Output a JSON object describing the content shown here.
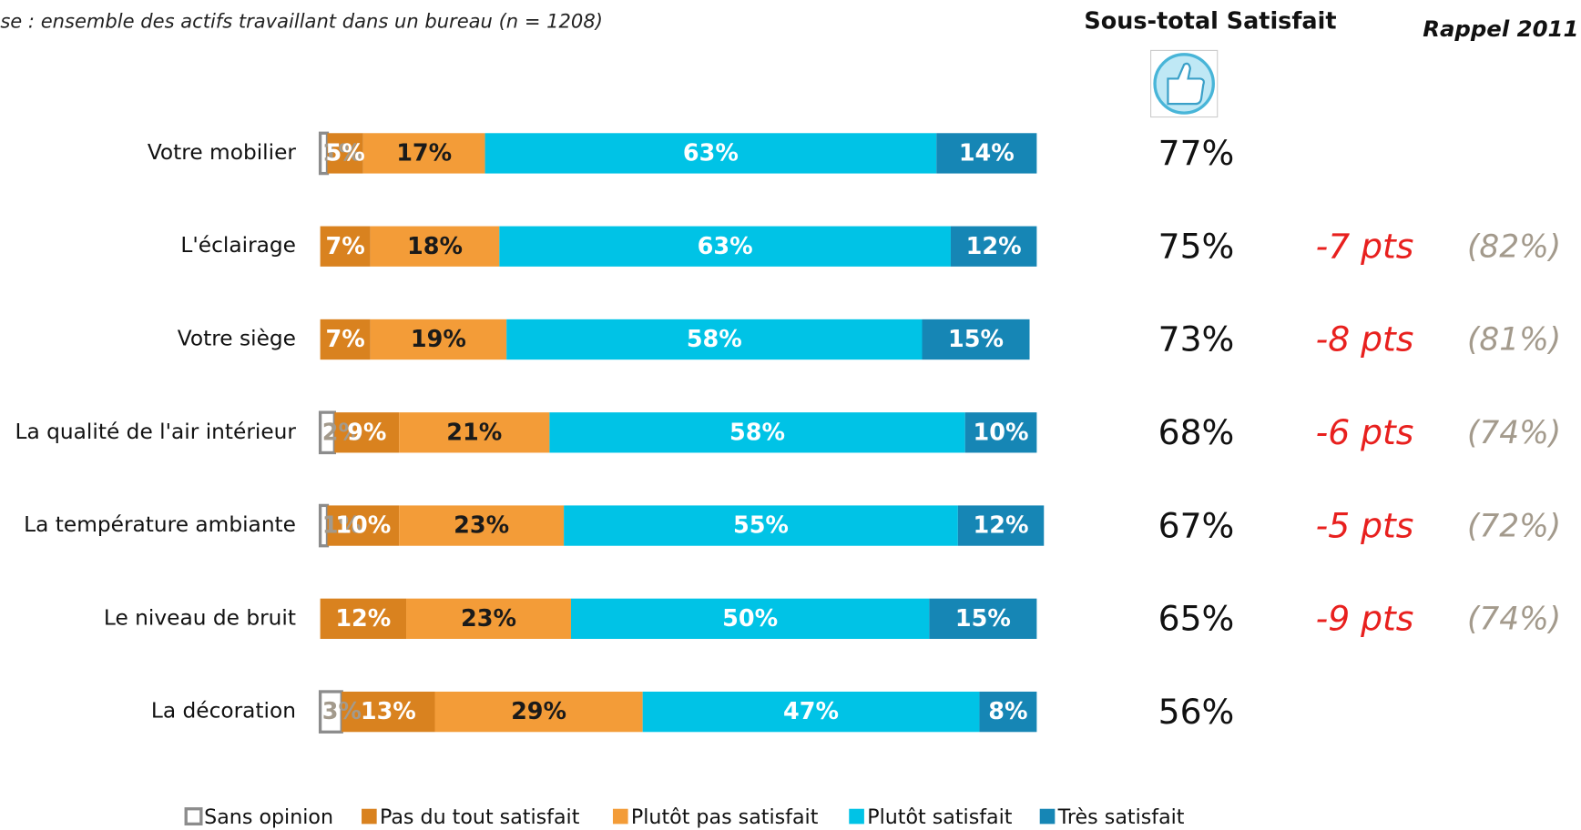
{
  "chart_data": {
    "type": "stacked-bar-horizontal",
    "subtitle": "se : ensemble des actifs travaillant dans un bureau (n = 1208)",
    "categories": [
      "Votre mobilier",
      "L'éclairage",
      "Votre siège",
      "La qualité de l'air intérieur",
      "La température ambiante",
      "Le niveau de bruit",
      "La décoration"
    ],
    "xlim": [
      0,
      100
    ],
    "series": [
      {
        "name": "Sans opinion",
        "color": "#ffffff",
        "stroke": "#8c8c8c",
        "label_color": "#a39a8c",
        "values": [
          1,
          null,
          null,
          2,
          1,
          null,
          3
        ],
        "value_labels": [
          "1%",
          null,
          null,
          "2%",
          "1%",
          null,
          "3%"
        ]
      },
      {
        "name": "Pas du tout satisfait",
        "color": "#d9821f",
        "label_color": "#ffffff",
        "values": [
          5,
          7,
          7,
          9,
          10,
          12,
          13
        ],
        "value_labels": [
          "5%",
          "7%",
          "7%",
          "9%",
          "10%",
          "12%",
          "13%"
        ]
      },
      {
        "name": "Plutôt pas satisfait",
        "color": "#f39c38",
        "label_color": "#1a1a1a",
        "values": [
          17,
          18,
          19,
          21,
          23,
          23,
          29
        ],
        "value_labels": [
          "17%",
          "18%",
          "19%",
          "21%",
          "23%",
          "23%",
          "29%"
        ]
      },
      {
        "name": "Plutôt satisfait",
        "color": "#00c3e6",
        "label_color": "#ffffff",
        "values": [
          63,
          63,
          58,
          58,
          55,
          50,
          47
        ],
        "value_labels": [
          "63%",
          "63%",
          "58%",
          "58%",
          "55%",
          "50%",
          "47%"
        ]
      },
      {
        "name": "Très satisfait",
        "color": "#1686b5",
        "label_color": "#ffffff",
        "values": [
          14,
          12,
          15,
          10,
          12,
          15,
          8
        ],
        "value_labels": [
          "14%",
          "12%",
          "15%",
          "10%",
          "12%",
          "15%",
          "8%"
        ]
      }
    ],
    "subtotal": {
      "title": "Sous-total Satisfait",
      "values": [
        77,
        75,
        73,
        68,
        67,
        65,
        56
      ],
      "value_labels": [
        "77%",
        "75%",
        "73%",
        "68%",
        "67%",
        "65%",
        "56%"
      ]
    },
    "recall": {
      "title": "Rappel 2011",
      "diff": [
        null,
        -7,
        -8,
        -6,
        -5,
        -9,
        null
      ],
      "diff_labels": [
        null,
        "-7 pts",
        "-8 pts",
        "-6 pts",
        "-5 pts",
        "-9 pts",
        null
      ],
      "diff_color": "#e8201e",
      "values": [
        null,
        82,
        81,
        74,
        72,
        74,
        null
      ],
      "value_labels": [
        null,
        "(82%)",
        "(81%)",
        "(74%)",
        "(72%)",
        "(74%)",
        null
      ],
      "color": "#a39a8c"
    }
  }
}
